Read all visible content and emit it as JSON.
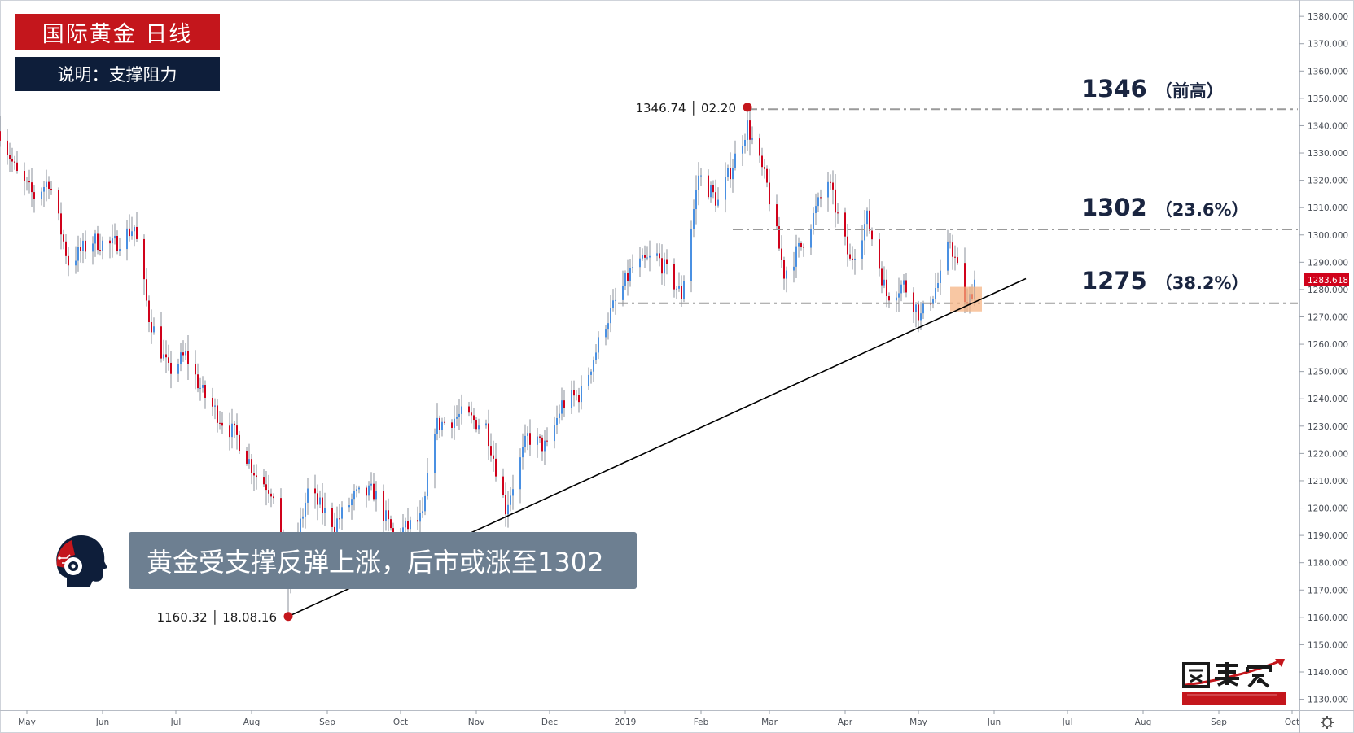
{
  "header": {
    "title": "国际黄金  日线",
    "subtitle": "说明：支撑阻力"
  },
  "callout": {
    "text": "黄金受支撑反弹上涨，后市或涨至1302"
  },
  "colors": {
    "up": "#4a90e2",
    "down": "#d0021b",
    "accent_red": "#c4161c",
    "navy": "#0e1e3a",
    "callout_bg": "#6d7f91",
    "level_line": "#9a9a9a",
    "trendline": "#000000",
    "support_zone": "#f5b27f"
  },
  "icons": {
    "advisor": "robot-head-icon",
    "settings": "gear-icon"
  },
  "chart_data": {
    "type": "candlestick",
    "instrument": "国际黄金",
    "timeframe": "日线",
    "ylim": [
      1126,
      1386
    ],
    "y_ticks": [
      1130,
      1140,
      1150,
      1160,
      1170,
      1180,
      1190,
      1200,
      1210,
      1220,
      1230,
      1240,
      1250,
      1260,
      1270,
      1280,
      1290,
      1300,
      1310,
      1320,
      1330,
      1340,
      1350,
      1360,
      1370,
      1380
    ],
    "y_tick_labels": [
      "1130.000",
      "1140.000",
      "1150.000",
      "1160.000",
      "1170.000",
      "1180.000",
      "1190.000",
      "1200.000",
      "1210.000",
      "1220.000",
      "1230.000",
      "1240.000",
      "1250.000",
      "1260.000",
      "1270.000",
      "1280.000",
      "1290.000",
      "1300.000",
      "1310.000",
      "1320.000",
      "1330.000",
      "1340.000",
      "1350.000",
      "1360.000",
      "1370.000",
      "1380.000"
    ],
    "x_range": [
      "2018-04-20",
      "2019-10-04"
    ],
    "x_ticks": [
      {
        "date": "2018-05-01",
        "label": "May"
      },
      {
        "date": "2018-06-01",
        "label": "Jun"
      },
      {
        "date": "2018-07-01",
        "label": "Jul"
      },
      {
        "date": "2018-08-01",
        "label": "Aug"
      },
      {
        "date": "2018-09-01",
        "label": "Sep"
      },
      {
        "date": "2018-10-01",
        "label": "Oct"
      },
      {
        "date": "2018-11-01",
        "label": "Nov"
      },
      {
        "date": "2018-12-01",
        "label": "Dec"
      },
      {
        "date": "2019-01-01",
        "label": "2019"
      },
      {
        "date": "2019-02-01",
        "label": "Feb"
      },
      {
        "date": "2019-03-01",
        "label": "Mar"
      },
      {
        "date": "2019-04-01",
        "label": "Apr"
      },
      {
        "date": "2019-05-01",
        "label": "May"
      },
      {
        "date": "2019-06-01",
        "label": "Jun"
      },
      {
        "date": "2019-07-01",
        "label": "Jul"
      },
      {
        "date": "2019-08-01",
        "label": "Aug"
      },
      {
        "date": "2019-09-01",
        "label": "Sep"
      },
      {
        "date": "2019-10-01",
        "label": "Oct"
      }
    ],
    "price_path": [
      {
        "date": "2018-04-20",
        "price": 1338
      },
      {
        "date": "2018-04-27",
        "price": 1322
      },
      {
        "date": "2018-05-04",
        "price": 1314
      },
      {
        "date": "2018-05-10",
        "price": 1320
      },
      {
        "date": "2018-05-18",
        "price": 1290
      },
      {
        "date": "2018-05-28",
        "price": 1298
      },
      {
        "date": "2018-06-05",
        "price": 1296
      },
      {
        "date": "2018-06-14",
        "price": 1303
      },
      {
        "date": "2018-06-20",
        "price": 1270
      },
      {
        "date": "2018-06-28",
        "price": 1250
      },
      {
        "date": "2018-07-05",
        "price": 1256
      },
      {
        "date": "2018-07-12",
        "price": 1242
      },
      {
        "date": "2018-07-20",
        "price": 1232
      },
      {
        "date": "2018-07-26",
        "price": 1226
      },
      {
        "date": "2018-08-03",
        "price": 1212
      },
      {
        "date": "2018-08-10",
        "price": 1206
      },
      {
        "date": "2018-08-16",
        "price": 1174
      },
      {
        "date": "2018-08-24",
        "price": 1206
      },
      {
        "date": "2018-09-04",
        "price": 1194
      },
      {
        "date": "2018-09-12",
        "price": 1204
      },
      {
        "date": "2018-09-20",
        "price": 1206
      },
      {
        "date": "2018-09-28",
        "price": 1190
      },
      {
        "date": "2018-10-10",
        "price": 1196
      },
      {
        "date": "2018-10-15",
        "price": 1230
      },
      {
        "date": "2018-10-26",
        "price": 1234
      },
      {
        "date": "2018-11-05",
        "price": 1230
      },
      {
        "date": "2018-11-13",
        "price": 1200
      },
      {
        "date": "2018-11-22",
        "price": 1226
      },
      {
        "date": "2018-11-30",
        "price": 1222
      },
      {
        "date": "2018-12-06",
        "price": 1238
      },
      {
        "date": "2018-12-14",
        "price": 1242
      },
      {
        "date": "2018-12-24",
        "price": 1268
      },
      {
        "date": "2019-01-04",
        "price": 1288
      },
      {
        "date": "2019-01-14",
        "price": 1292
      },
      {
        "date": "2019-01-24",
        "price": 1278
      },
      {
        "date": "2019-01-31",
        "price": 1322
      },
      {
        "date": "2019-02-08",
        "price": 1312
      },
      {
        "date": "2019-02-20",
        "price": 1340
      },
      {
        "date": "2019-02-28",
        "price": 1318
      },
      {
        "date": "2019-03-07",
        "price": 1286
      },
      {
        "date": "2019-03-14",
        "price": 1296
      },
      {
        "date": "2019-03-25",
        "price": 1320
      },
      {
        "date": "2019-04-03",
        "price": 1290
      },
      {
        "date": "2019-04-10",
        "price": 1306
      },
      {
        "date": "2019-04-18",
        "price": 1278
      },
      {
        "date": "2019-04-25",
        "price": 1282
      },
      {
        "date": "2019-05-02",
        "price": 1270
      },
      {
        "date": "2019-05-10",
        "price": 1284
      },
      {
        "date": "2019-05-14",
        "price": 1298
      },
      {
        "date": "2019-05-21",
        "price": 1273
      },
      {
        "date": "2019-05-24",
        "price": 1283.6
      }
    ],
    "current_price": {
      "value": 1283.618,
      "label": "1283.618"
    },
    "levels": [
      {
        "price": 1346,
        "label": "1346",
        "note": "（前高）",
        "start_date": "2019-02-20"
      },
      {
        "price": 1302,
        "label": "1302",
        "note": "（23.6%）",
        "start_date": "2019-02-14"
      },
      {
        "price": 1275,
        "label": "1275",
        "note": "（38.2%）",
        "start_date": "2018-12-29"
      }
    ],
    "annotations": [
      {
        "date": "2019-02-20",
        "price": 1346.74,
        "label": "1346.74 │ 02.20"
      },
      {
        "date": "2018-08-16",
        "price": 1160.32,
        "label": "1160.32 │ 18.08.16"
      }
    ],
    "trendline": {
      "start": {
        "date": "2018-08-16",
        "price": 1160.32
      },
      "end": {
        "date": "2019-06-14",
        "price": 1284
      }
    },
    "support_zone": {
      "date_start": "2019-05-14",
      "date_end": "2019-05-27",
      "price_low": 1272,
      "price_high": 1281
    }
  }
}
